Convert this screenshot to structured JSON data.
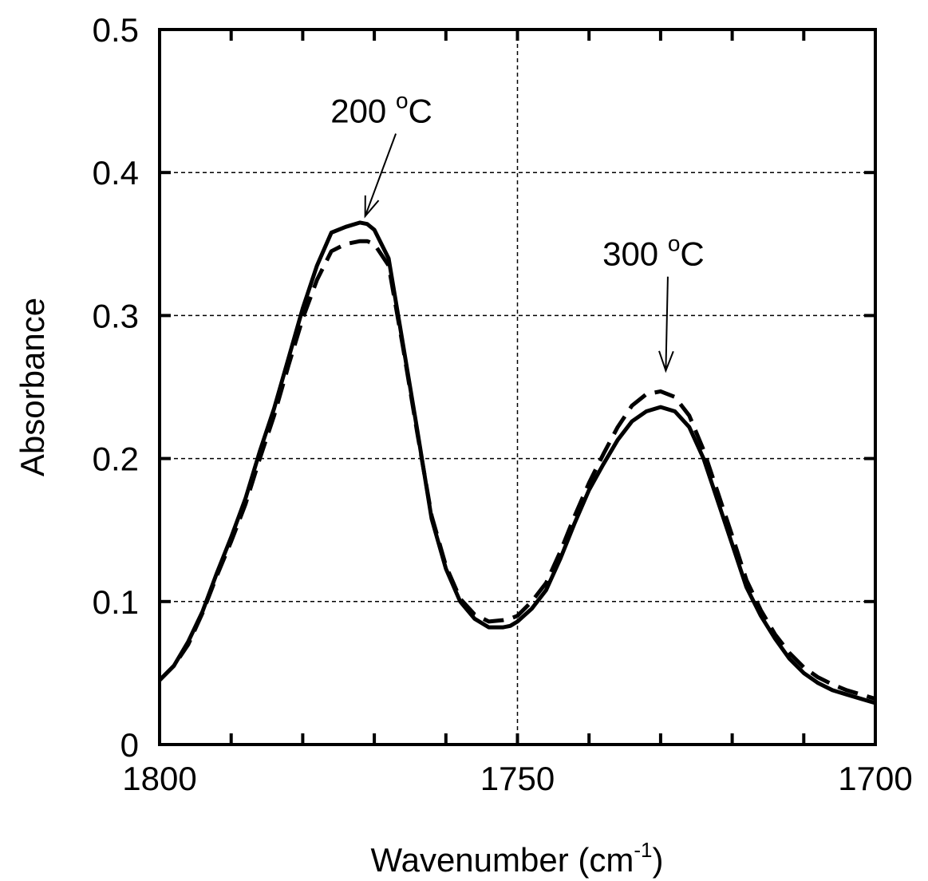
{
  "chart_data": {
    "type": "line",
    "xlabel": "Wavenumber (cm",
    "xlabel_sup": "-1",
    "xlabel_close": ")",
    "ylabel": "Absorbance",
    "xlim": [
      1800,
      1700
    ],
    "ylim": [
      0,
      0.5
    ],
    "x_reversed": true,
    "grid": true,
    "x_ticks": [
      1800,
      1750,
      1700
    ],
    "x_tick_labels": [
      "1800",
      "1750",
      "1700"
    ],
    "x_minor_step": 10,
    "y_ticks": [
      0,
      0.1,
      0.2,
      0.3,
      0.4,
      0.5
    ],
    "y_tick_labels": [
      "0",
      "0.1",
      "0.2",
      "0.3",
      "0.4",
      "0.5"
    ],
    "annotations": [
      {
        "text_main": "200 ",
        "text_sup": "o",
        "text_tail": "C",
        "points_to": [
          1771.5,
          0.365
        ],
        "label_at": [
          1769,
          0.435
        ],
        "series": 0
      },
      {
        "text_main": "300 ",
        "text_sup": "o",
        "text_tail": "C",
        "points_to": [
          1729.5,
          0.257
        ],
        "label_at": [
          1731,
          0.335
        ],
        "series": 1
      }
    ],
    "series": [
      {
        "name": "200 °C",
        "style": "solid",
        "x": [
          1800,
          1798,
          1796,
          1794,
          1792,
          1790,
          1788,
          1786,
          1784,
          1782,
          1780,
          1778,
          1776,
          1774,
          1772,
          1771,
          1770,
          1768,
          1766,
          1764,
          1762,
          1760,
          1758,
          1756,
          1754,
          1752,
          1751,
          1750,
          1748,
          1746,
          1744,
          1742,
          1740,
          1738,
          1736,
          1734,
          1732,
          1730,
          1728,
          1726,
          1724,
          1722,
          1720,
          1718,
          1716,
          1714,
          1712,
          1710,
          1708,
          1706,
          1704,
          1702,
          1700
        ],
        "values": [
          0.045,
          0.055,
          0.072,
          0.093,
          0.12,
          0.145,
          0.172,
          0.205,
          0.235,
          0.27,
          0.305,
          0.335,
          0.358,
          0.362,
          0.365,
          0.364,
          0.36,
          0.34,
          0.28,
          0.22,
          0.158,
          0.123,
          0.1,
          0.088,
          0.082,
          0.082,
          0.083,
          0.086,
          0.095,
          0.108,
          0.13,
          0.155,
          0.178,
          0.196,
          0.213,
          0.226,
          0.233,
          0.236,
          0.233,
          0.222,
          0.2,
          0.17,
          0.14,
          0.11,
          0.09,
          0.074,
          0.06,
          0.05,
          0.043,
          0.038,
          0.035,
          0.032,
          0.029
        ]
      },
      {
        "name": "300 °C",
        "style": "dashed",
        "x": [
          1800,
          1798,
          1796,
          1794,
          1792,
          1790,
          1788,
          1786,
          1784,
          1782,
          1780,
          1778,
          1776,
          1774,
          1772,
          1771,
          1770,
          1768,
          1766,
          1764,
          1762,
          1760,
          1758,
          1756,
          1754,
          1752,
          1751,
          1750,
          1748,
          1746,
          1744,
          1742,
          1740,
          1738,
          1736,
          1734,
          1732,
          1730,
          1728,
          1726,
          1724,
          1722,
          1720,
          1718,
          1716,
          1714,
          1712,
          1710,
          1708,
          1706,
          1704,
          1702,
          1700
        ],
        "values": [
          0.045,
          0.055,
          0.07,
          0.092,
          0.118,
          0.142,
          0.168,
          0.2,
          0.23,
          0.265,
          0.298,
          0.325,
          0.345,
          0.35,
          0.352,
          0.352,
          0.35,
          0.335,
          0.278,
          0.218,
          0.16,
          0.125,
          0.102,
          0.091,
          0.086,
          0.087,
          0.088,
          0.09,
          0.1,
          0.113,
          0.135,
          0.16,
          0.183,
          0.203,
          0.222,
          0.237,
          0.245,
          0.247,
          0.243,
          0.23,
          0.206,
          0.176,
          0.146,
          0.115,
          0.094,
          0.077,
          0.064,
          0.054,
          0.047,
          0.042,
          0.038,
          0.035,
          0.032
        ]
      }
    ]
  }
}
